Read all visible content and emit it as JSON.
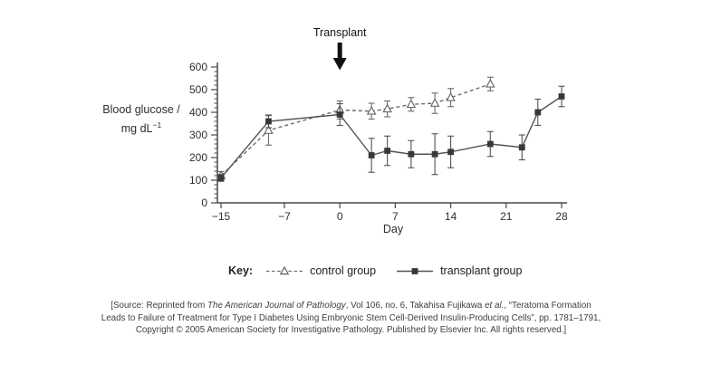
{
  "figure": {
    "y_axis_label_line1": "Blood glucose /",
    "y_axis_unit_prefix": "mg dL",
    "y_axis_unit_sup": "−1",
    "x_axis_label": "Day"
  },
  "key": {
    "title": "Key:",
    "items": [
      {
        "label": "control group",
        "marker": "open-triangle-dashed-line"
      },
      {
        "label": "transplant group",
        "marker": "filled-square-solid-line"
      }
    ]
  },
  "source": {
    "line1_prefix": "[Source: Reprinted from ",
    "line1_italic1": "The American Journal of Pathology",
    "line1_mid": ", Vol 106, no. 6, Takahisa Fujikawa ",
    "line1_italic2": "et al.",
    "line1_suffix": ", “Teratoma Formation",
    "line2": "Leads to Failure of Treatment for Type I Diabetes Using Embryonic Stem Cell-Derived Insulin-Producing Cells”, pp. 1781–1791,",
    "line3": "Copyright © 2005 American Society for Investigative Pathology. Published by Elsevier Inc. All rights reserved.]"
  },
  "chart_data": {
    "type": "line",
    "title": "",
    "xlabel": "Day",
    "ylabel": "Blood glucose / mg dL⁻¹",
    "xlim": [
      -15,
      28
    ],
    "ylim": [
      0,
      600
    ],
    "xticks": [
      -15,
      -7,
      0,
      7,
      14,
      21,
      28
    ],
    "xtick_labels": [
      "−15",
      "−7",
      "0",
      "7",
      "14",
      "21",
      "28"
    ],
    "yticks": [
      600,
      500,
      400,
      300,
      200,
      100,
      0
    ],
    "y_minor_tick_step": 20,
    "grid": false,
    "legend_position": "below",
    "annotation": {
      "label": "Transplant",
      "x": 0
    },
    "axis_color": "#4a4a4a",
    "series": [
      {
        "name": "control group",
        "line_style": "dashed",
        "marker": "open-triangle",
        "color": "#6b6b6b",
        "x": [
          -15,
          -9,
          0,
          4,
          6,
          9,
          12,
          14,
          19
        ],
        "y": [
          120,
          320,
          410,
          405,
          415,
          435,
          440,
          465,
          525
        ],
        "yerr": [
          18,
          65,
          40,
          35,
          35,
          30,
          45,
          40,
          30
        ]
      },
      {
        "name": "transplant group",
        "line_style": "solid",
        "marker": "filled-square",
        "color": "#525252",
        "x": [
          -15,
          -9,
          0,
          4,
          6,
          9,
          12,
          14,
          19,
          23,
          25,
          28
        ],
        "y": [
          110,
          360,
          390,
          210,
          230,
          215,
          215,
          225,
          260,
          245,
          400,
          470
        ],
        "yerr": [
          15,
          28,
          48,
          75,
          65,
          60,
          90,
          70,
          55,
          55,
          58,
          45
        ]
      }
    ]
  }
}
